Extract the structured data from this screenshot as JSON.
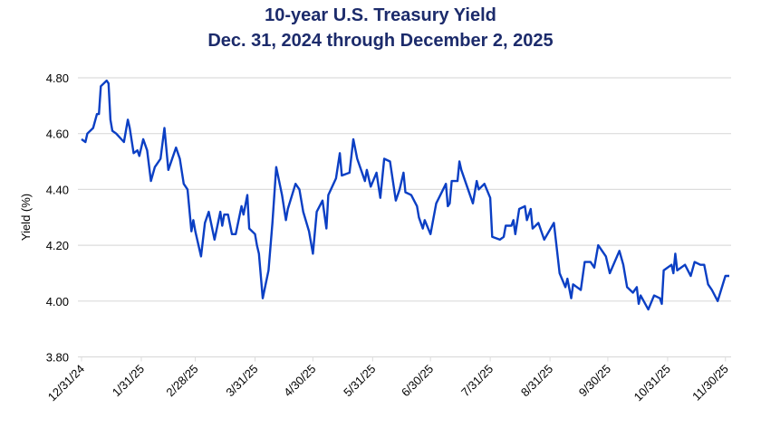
{
  "chart_data": {
    "type": "line",
    "title": "10-year U.S. Treasury Yield",
    "subtitle": "Dec. 31, 2024 through December 2, 2025",
    "xlabel": "",
    "ylabel": "Yield (%)",
    "ylim": [
      3.8,
      4.8
    ],
    "yticks": [
      "3.80",
      "4.00",
      "4.20",
      "4.40",
      "4.60",
      "4.80"
    ],
    "xlim": [
      "2024-12-31",
      "2025-12-02"
    ],
    "xticks": [
      {
        "date": "2024-12-31",
        "label": "12/31/24"
      },
      {
        "date": "2025-01-31",
        "label": "1/31/25"
      },
      {
        "date": "2025-02-28",
        "label": "2/28/25"
      },
      {
        "date": "2025-03-31",
        "label": "3/31/25"
      },
      {
        "date": "2025-04-30",
        "label": "4/30/25"
      },
      {
        "date": "2025-05-31",
        "label": "5/31/25"
      },
      {
        "date": "2025-06-30",
        "label": "6/30/25"
      },
      {
        "date": "2025-07-31",
        "label": "7/31/25"
      },
      {
        "date": "2025-08-31",
        "label": "8/31/25"
      },
      {
        "date": "2025-09-30",
        "label": "9/30/25"
      },
      {
        "date": "2025-10-31",
        "label": "10/31/25"
      },
      {
        "date": "2025-11-30",
        "label": "11/30/25"
      }
    ],
    "grid": "horizontal",
    "line_color": "#0b3fc4",
    "series": [
      {
        "points": [
          [
            "2024-12-31",
            4.58
          ],
          [
            "2025-01-02",
            4.57
          ],
          [
            "2025-01-03",
            4.6
          ],
          [
            "2025-01-06",
            4.62
          ],
          [
            "2025-01-08",
            4.67
          ],
          [
            "2025-01-09",
            4.67
          ],
          [
            "2025-01-10",
            4.77
          ],
          [
            "2025-01-13",
            4.79
          ],
          [
            "2025-01-14",
            4.78
          ],
          [
            "2025-01-15",
            4.65
          ],
          [
            "2025-01-16",
            4.61
          ],
          [
            "2025-01-18",
            4.6
          ],
          [
            "2025-01-22",
            4.57
          ],
          [
            "2025-01-24",
            4.65
          ],
          [
            "2025-01-25",
            4.62
          ],
          [
            "2025-01-27",
            4.53
          ],
          [
            "2025-01-29",
            4.54
          ],
          [
            "2025-01-30",
            4.52
          ],
          [
            "2025-02-01",
            4.58
          ],
          [
            "2025-02-03",
            4.54
          ],
          [
            "2025-02-05",
            4.43
          ],
          [
            "2025-02-07",
            4.48
          ],
          [
            "2025-02-10",
            4.51
          ],
          [
            "2025-02-12",
            4.62
          ],
          [
            "2025-02-14",
            4.47
          ],
          [
            "2025-02-18",
            4.55
          ],
          [
            "2025-02-20",
            4.51
          ],
          [
            "2025-02-22",
            4.42
          ],
          [
            "2025-02-24",
            4.4
          ],
          [
            "2025-02-26",
            4.25
          ],
          [
            "2025-02-27",
            4.29
          ],
          [
            "2025-02-28",
            4.25
          ],
          [
            "2025-03-03",
            4.16
          ],
          [
            "2025-03-05",
            4.28
          ],
          [
            "2025-03-07",
            4.32
          ],
          [
            "2025-03-10",
            4.22
          ],
          [
            "2025-03-13",
            4.32
          ],
          [
            "2025-03-14",
            4.27
          ],
          [
            "2025-03-15",
            4.31
          ],
          [
            "2025-03-17",
            4.31
          ],
          [
            "2025-03-19",
            4.24
          ],
          [
            "2025-03-21",
            4.24
          ],
          [
            "2025-03-24",
            4.34
          ],
          [
            "2025-03-25",
            4.31
          ],
          [
            "2025-03-27",
            4.38
          ],
          [
            "2025-03-28",
            4.26
          ],
          [
            "2025-03-31",
            4.24
          ],
          [
            "2025-04-01",
            4.2
          ],
          [
            "2025-04-02",
            4.17
          ],
          [
            "2025-04-04",
            4.01
          ],
          [
            "2025-04-07",
            4.11
          ],
          [
            "2025-04-09",
            4.28
          ],
          [
            "2025-04-11",
            4.48
          ],
          [
            "2025-04-14",
            4.38
          ],
          [
            "2025-04-16",
            4.29
          ],
          [
            "2025-04-17",
            4.33
          ],
          [
            "2025-04-21",
            4.42
          ],
          [
            "2025-04-23",
            4.4
          ],
          [
            "2025-04-25",
            4.32
          ],
          [
            "2025-04-28",
            4.25
          ],
          [
            "2025-04-30",
            4.17
          ],
          [
            "2025-05-02",
            4.32
          ],
          [
            "2025-05-05",
            4.36
          ],
          [
            "2025-05-07",
            4.26
          ],
          [
            "2025-05-08",
            4.38
          ],
          [
            "2025-05-12",
            4.44
          ],
          [
            "2025-05-14",
            4.53
          ],
          [
            "2025-05-15",
            4.45
          ],
          [
            "2025-05-19",
            4.46
          ],
          [
            "2025-05-21",
            4.58
          ],
          [
            "2025-05-23",
            4.51
          ],
          [
            "2025-05-26",
            4.45
          ],
          [
            "2025-05-27",
            4.43
          ],
          [
            "2025-05-28",
            4.47
          ],
          [
            "2025-05-30",
            4.41
          ],
          [
            "2025-06-02",
            4.46
          ],
          [
            "2025-06-04",
            4.37
          ],
          [
            "2025-06-06",
            4.51
          ],
          [
            "2025-06-09",
            4.5
          ],
          [
            "2025-06-12",
            4.36
          ],
          [
            "2025-06-14",
            4.4
          ],
          [
            "2025-06-16",
            4.46
          ],
          [
            "2025-06-17",
            4.39
          ],
          [
            "2025-06-20",
            4.38
          ],
          [
            "2025-06-23",
            4.34
          ],
          [
            "2025-06-24",
            4.3
          ],
          [
            "2025-06-26",
            4.26
          ],
          [
            "2025-06-27",
            4.29
          ],
          [
            "2025-06-30",
            4.24
          ],
          [
            "2025-07-03",
            4.35
          ],
          [
            "2025-07-08",
            4.42
          ],
          [
            "2025-07-09",
            4.34
          ],
          [
            "2025-07-10",
            4.35
          ],
          [
            "2025-07-11",
            4.43
          ],
          [
            "2025-07-14",
            4.43
          ],
          [
            "2025-07-15",
            4.5
          ],
          [
            "2025-07-16",
            4.47
          ],
          [
            "2025-07-22",
            4.35
          ],
          [
            "2025-07-24",
            4.43
          ],
          [
            "2025-07-25",
            4.4
          ],
          [
            "2025-07-28",
            4.42
          ],
          [
            "2025-07-31",
            4.37
          ],
          [
            "2025-08-01",
            4.23
          ],
          [
            "2025-08-05",
            4.22
          ],
          [
            "2025-08-07",
            4.23
          ],
          [
            "2025-08-08",
            4.27
          ],
          [
            "2025-08-11",
            4.27
          ],
          [
            "2025-08-12",
            4.29
          ],
          [
            "2025-08-13",
            4.24
          ],
          [
            "2025-08-15",
            4.33
          ],
          [
            "2025-08-18",
            4.34
          ],
          [
            "2025-08-19",
            4.29
          ],
          [
            "2025-08-21",
            4.33
          ],
          [
            "2025-08-22",
            4.26
          ],
          [
            "2025-08-25",
            4.28
          ],
          [
            "2025-08-28",
            4.22
          ],
          [
            "2025-09-02",
            4.28
          ],
          [
            "2025-09-05",
            4.1
          ],
          [
            "2025-09-08",
            4.05
          ],
          [
            "2025-09-09",
            4.08
          ],
          [
            "2025-09-11",
            4.01
          ],
          [
            "2025-09-12",
            4.06
          ],
          [
            "2025-09-16",
            4.04
          ],
          [
            "2025-09-18",
            4.14
          ],
          [
            "2025-09-21",
            4.14
          ],
          [
            "2025-09-23",
            4.12
          ],
          [
            "2025-09-25",
            4.2
          ],
          [
            "2025-09-29",
            4.16
          ],
          [
            "2025-10-01",
            4.1
          ],
          [
            "2025-10-06",
            4.18
          ],
          [
            "2025-10-08",
            4.13
          ],
          [
            "2025-10-10",
            4.05
          ],
          [
            "2025-10-13",
            4.03
          ],
          [
            "2025-10-15",
            4.05
          ],
          [
            "2025-10-16",
            3.99
          ],
          [
            "2025-10-17",
            4.02
          ],
          [
            "2025-10-21",
            3.97
          ],
          [
            "2025-10-24",
            4.02
          ],
          [
            "2025-10-27",
            4.01
          ],
          [
            "2025-10-28",
            3.99
          ],
          [
            "2025-10-29",
            4.11
          ],
          [
            "2025-11-02",
            4.13
          ],
          [
            "2025-11-03",
            4.1
          ],
          [
            "2025-11-04",
            4.17
          ],
          [
            "2025-11-05",
            4.11
          ],
          [
            "2025-11-09",
            4.13
          ],
          [
            "2025-11-12",
            4.09
          ],
          [
            "2025-11-14",
            4.14
          ],
          [
            "2025-11-17",
            4.13
          ],
          [
            "2025-11-19",
            4.13
          ],
          [
            "2025-11-21",
            4.06
          ],
          [
            "2025-11-23",
            4.04
          ],
          [
            "2025-11-26",
            4.0
          ],
          [
            "2025-11-30",
            4.09
          ],
          [
            "2025-12-02",
            4.09
          ]
        ]
      }
    ]
  }
}
